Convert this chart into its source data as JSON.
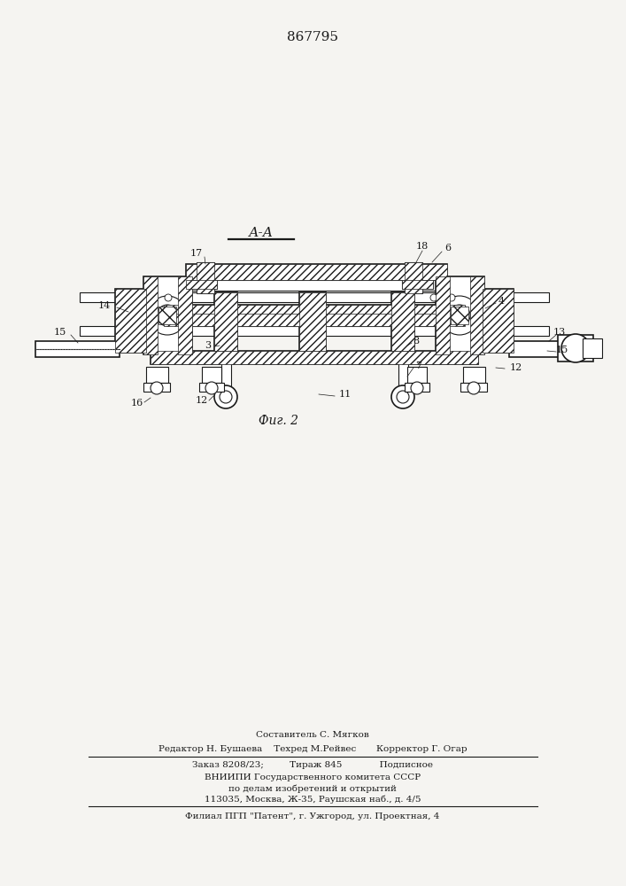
{
  "patent_number": "867795",
  "section_label": "А-А",
  "fig_label": "Фиг. 2",
  "bg_color": "#f5f4f1",
  "line_color": "#1a1a1a",
  "title_fontsize": 11,
  "label_fontsize": 8,
  "fig_label_fontsize": 10,
  "footer_lines": [
    "Составитель С. Мягков",
    "Редактор Н. Бушаева    Техред М.Рейвес       Корректор Г. Огар",
    "Заказ 8208/23;         Тираж 845             Подписное",
    "ВНИИПИ Государственного комитета СССР",
    "по делам изобретений и открытий",
    "113035, Москва, Ж-35, Раушская наб., д. 4/5",
    "Филиал ПГП \"Патент\", г. Ужгород, ул. Проектная, 4"
  ]
}
